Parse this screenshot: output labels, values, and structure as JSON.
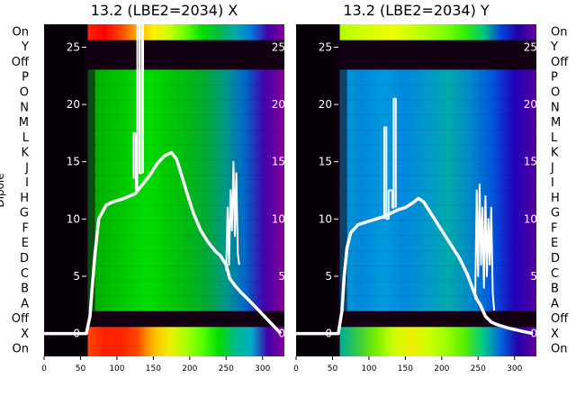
{
  "chart_data": [
    {
      "type": "heatmap",
      "title": "13.2 (LBE2=2034) X",
      "ylabel": "Dipole",
      "xlim": [
        0,
        330
      ],
      "xticks": [
        0,
        50,
        100,
        150,
        200,
        250,
        300
      ],
      "overlay_ylim": [
        -2,
        27
      ],
      "overlay_yticks": [
        0,
        5,
        10,
        15,
        20,
        25
      ],
      "row_labels_left": [
        "On",
        "Y",
        "Off",
        "P",
        "O",
        "N",
        "M",
        "L",
        "K",
        "J",
        "I",
        "H",
        "G",
        "F",
        "E",
        "D",
        "C",
        "B",
        "A",
        "Off",
        "X",
        "On"
      ],
      "row_labels_right": [],
      "colormap": "nipy_spectral",
      "band_color_stops": {
        "top_strip": [
          "#ff2200",
          "#ff0000",
          "#ff4400",
          "#ffaa00",
          "#ffee00",
          "#ccff00",
          "#66ff00",
          "#00dd00",
          "#00bb44",
          "#00aaaa",
          "#0077dd",
          "#4400aa",
          "#880099"
        ],
        "main_dipoles": [
          "#00aa00",
          "#00bb00",
          "#00cc00",
          "#00dd00",
          "#00cc00",
          "#00bb11",
          "#00aa33",
          "#009988",
          "#0066cc",
          "#4400aa",
          "#880099"
        ],
        "bottom_strip": [
          "#ff4400",
          "#ff2200",
          "#ff2200",
          "#ff4400",
          "#ffbb00",
          "#eeee00",
          "#aaff00",
          "#55ff00",
          "#00dd00",
          "#00bb88",
          "#00aacc",
          "#4400aa",
          "#880099"
        ]
      },
      "series": [
        {
          "x": [
            0,
            58,
            63,
            66,
            70,
            75,
            85,
            95,
            110,
            125,
            135,
            145,
            155,
            165,
            175,
            182,
            188,
            195,
            205,
            215,
            225,
            235,
            242,
            250,
            255,
            262,
            270,
            280,
            295,
            310,
            325
          ],
          "y": [
            0,
            0,
            1.5,
            4,
            7,
            10,
            11.2,
            11.5,
            11.8,
            12.2,
            13,
            13.8,
            14.8,
            15.5,
            15.8,
            15.2,
            14,
            12.5,
            10.5,
            9,
            8,
            7.2,
            6.8,
            6,
            4.8,
            4.2,
            3.6,
            3,
            2,
            1,
            0
          ]
        },
        {
          "x": [
            123,
            123,
            126,
            126,
            128,
            128,
            131,
            131,
            134,
            134,
            136,
            136
          ],
          "y": [
            13.5,
            17.5,
            17.5,
            12.5,
            12.5,
            27,
            27,
            14,
            14,
            27,
            27,
            14
          ]
        },
        {
          "x": [
            250,
            252,
            254,
            256,
            258,
            260,
            262,
            264,
            266,
            268
          ],
          "y": [
            5.5,
            11,
            6,
            12.5,
            9,
            15,
            8.5,
            14,
            7,
            6
          ]
        }
      ]
    },
    {
      "type": "heatmap",
      "title": "13.2 (LBE2=2034) Y",
      "ylabel": "",
      "xlim": [
        0,
        330
      ],
      "xticks": [
        0,
        50,
        100,
        150,
        200,
        250,
        300
      ],
      "overlay_ylim": [
        -2,
        27
      ],
      "overlay_yticks": [
        0,
        5,
        10,
        15,
        20,
        25
      ],
      "row_labels_left": [],
      "row_labels_right": [
        "On",
        "Y",
        "Off",
        "P",
        "O",
        "N",
        "M",
        "L",
        "K",
        "J",
        "I",
        "H",
        "G",
        "F",
        "E",
        "D",
        "C",
        "B",
        "A",
        "Off",
        "X",
        "On"
      ],
      "colormap": "nipy_spectral",
      "band_color_stops": {
        "top_strip": [
          "#aaff00",
          "#ccff00",
          "#ddff00",
          "#eeff00",
          "#ccff00",
          "#aaff00",
          "#77ff00",
          "#33ee00",
          "#00cc77",
          "#0044dd",
          "#2200aa",
          "#660099"
        ],
        "main_dipoles": [
          "#0099cc",
          "#0088dd",
          "#0099dd",
          "#0088dd",
          "#0099cc",
          "#00aaaa",
          "#0088cc",
          "#0055dd",
          "#2200bb",
          "#550099"
        ],
        "bottom_strip": [
          "#00aa99",
          "#33cc44",
          "#77ee00",
          "#ccff00",
          "#eeee00",
          "#ccff00",
          "#99ff00",
          "#55ee00",
          "#00cc88",
          "#0066dd",
          "#2200aa",
          "#660099"
        ]
      },
      "series": [
        {
          "x": [
            0,
            58,
            63,
            66,
            70,
            75,
            85,
            95,
            110,
            120,
            130,
            140,
            150,
            160,
            168,
            175,
            185,
            195,
            205,
            215,
            225,
            235,
            242,
            248,
            253,
            260,
            268,
            275,
            290,
            310,
            325
          ],
          "y": [
            0,
            0,
            2,
            5,
            7.5,
            8.8,
            9.5,
            9.7,
            10,
            10.2,
            10.5,
            10.8,
            11,
            11.4,
            11.8,
            11.5,
            10.5,
            9.5,
            8.5,
            7.5,
            6.5,
            5.2,
            4,
            3,
            2.5,
            1.5,
            1,
            0.8,
            0.5,
            0.2,
            0
          ]
        },
        {
          "x": [
            121,
            121,
            124,
            124,
            127,
            127,
            132,
            132,
            134,
            134,
            137,
            137
          ],
          "y": [
            10,
            18,
            18,
            10,
            10,
            12.5,
            12.5,
            11,
            11,
            20.5,
            20.5,
            11
          ]
        },
        {
          "x": [
            246,
            248,
            250,
            252,
            254,
            256,
            258,
            260,
            262,
            264,
            266,
            268,
            270,
            272
          ],
          "y": [
            3,
            12.5,
            5,
            13,
            6,
            11,
            4,
            12,
            5,
            10,
            6,
            11,
            3.5,
            2
          ]
        }
      ]
    }
  ]
}
